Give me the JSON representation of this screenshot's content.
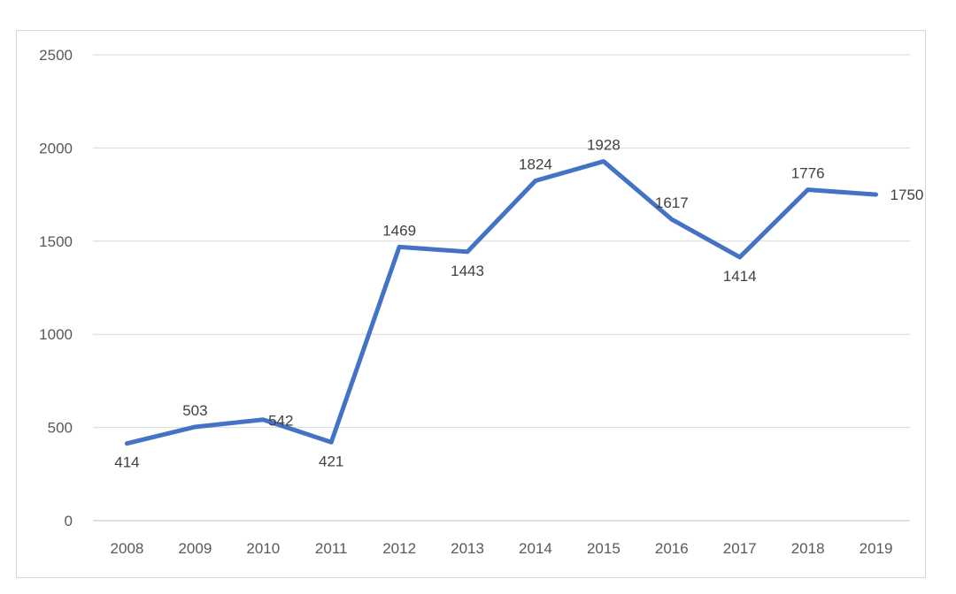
{
  "chart_data": {
    "type": "line",
    "title": "",
    "xlabel": "",
    "ylabel": "",
    "categories": [
      "2008",
      "2009",
      "2010",
      "2011",
      "2012",
      "2013",
      "2014",
      "2015",
      "2016",
      "2017",
      "2018",
      "2019"
    ],
    "series": [
      {
        "values": [
          414,
          503,
          542,
          421,
          1469,
          1443,
          1824,
          1928,
          1617,
          1414,
          1776,
          1750
        ],
        "color": "#4472c4"
      }
    ],
    "ylim": [
      0,
      2500
    ],
    "yticks": [
      "0",
      "500",
      "1000",
      "1500",
      "2000",
      "2500"
    ],
    "grid": true,
    "legend": "none",
    "data_labels": [
      "414",
      "503",
      "542",
      "421",
      "1469",
      "1443",
      "1824",
      "1928",
      "1617",
      "1414",
      "1776",
      "1750"
    ]
  }
}
